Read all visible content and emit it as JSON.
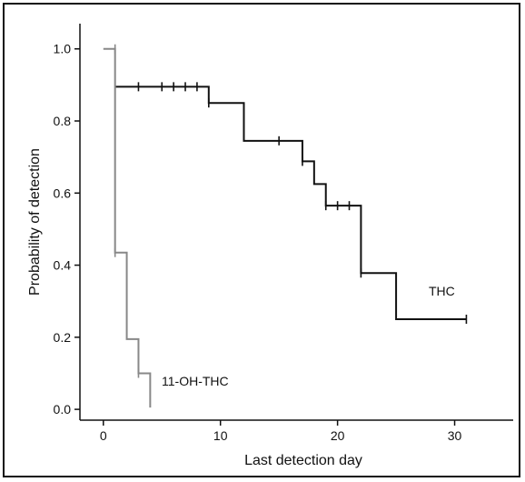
{
  "chart_data": {
    "type": "line",
    "title": "",
    "xlabel": "Last detection day",
    "ylabel": "Probability of detection",
    "xlim": [
      -2,
      35
    ],
    "ylim": [
      -0.03,
      1.07
    ],
    "xticks": [
      0,
      10,
      20,
      30
    ],
    "yticks": [
      0.0,
      0.2,
      0.4,
      0.6,
      0.8,
      1.0
    ],
    "ytick_labels": [
      "0.0",
      "0.2",
      "0.4",
      "0.6",
      "0.8",
      "1.0"
    ],
    "grid": false,
    "legend": "none",
    "series": [
      {
        "name": "THC",
        "color": "#111111",
        "step": [
          [
            1,
            0.895
          ],
          [
            9,
            0.85
          ],
          [
            12,
            0.745
          ],
          [
            17,
            0.688
          ],
          [
            18,
            0.625
          ],
          [
            19,
            0.565
          ],
          [
            22,
            0.378
          ],
          [
            25,
            0.25
          ],
          [
            31,
            0.25
          ]
        ],
        "censored": [
          [
            3,
            0.895
          ],
          [
            5,
            0.895
          ],
          [
            6,
            0.895
          ],
          [
            7,
            0.895
          ],
          [
            8,
            0.895
          ],
          [
            9,
            0.85
          ],
          [
            15,
            0.745
          ],
          [
            17,
            0.688
          ],
          [
            19,
            0.565
          ],
          [
            20,
            0.565
          ],
          [
            21,
            0.565
          ],
          [
            22,
            0.378
          ],
          [
            31,
            0.25
          ]
        ]
      },
      {
        "name": "11-OH-THC",
        "color": "#888888",
        "step": [
          [
            0,
            1.0
          ],
          [
            1,
            0.435
          ],
          [
            2,
            0.195
          ],
          [
            3,
            0.1
          ],
          [
            4,
            0.005
          ]
        ],
        "censored": [
          [
            1,
            1.0
          ],
          [
            1,
            0.435
          ],
          [
            3,
            0.1
          ]
        ]
      }
    ]
  }
}
